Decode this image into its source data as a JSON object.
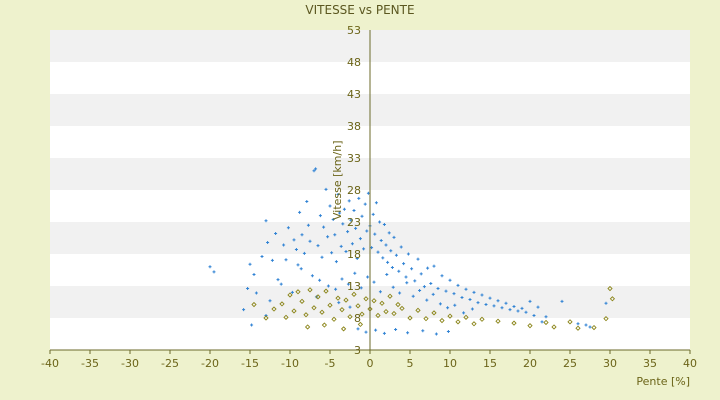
{
  "chart_data": {
    "type": "scatter",
    "title": "VITESSE vs PENTE",
    "xlabel": "Pente [%]",
    "ylabel": "Vitesse [km/h]",
    "xlim": [
      -40,
      40
    ],
    "ylim": [
      3,
      53
    ],
    "x_ticks": [
      "-40",
      "-35",
      "-30",
      "-25",
      "-20",
      "-15",
      "-10",
      "-5",
      "0",
      "5",
      "10",
      "15",
      "20",
      "25",
      "30",
      "35",
      "40"
    ],
    "y_ticks": [
      "3",
      "8",
      "13",
      "18",
      "23",
      "28",
      "33",
      "38",
      "43",
      "48",
      "53"
    ],
    "grid": "horizontal bands",
    "legend": "none",
    "colors": {
      "background": "#eef2cd",
      "plot_band_light": "#ffffff",
      "plot_band_gray": "#f1f1f1",
      "series_blue": "#2f82d4",
      "series_olive": "#8a8418",
      "axis_line": "#6b6a2a",
      "text": "#6b6418"
    },
    "series": [
      {
        "color": "#2f82d4",
        "marker": "cross",
        "points": [
          [
            -20,
            16.0
          ],
          [
            -19.5,
            15.2
          ],
          [
            -15,
            16.4
          ],
          [
            -14.5,
            14.8
          ],
          [
            -13.5,
            17.6
          ],
          [
            -13,
            23.2
          ],
          [
            -12.8,
            19.8
          ],
          [
            -12.2,
            17.0
          ],
          [
            -11.8,
            21.2
          ],
          [
            -11.5,
            14.0
          ],
          [
            -10.8,
            19.4
          ],
          [
            -10.5,
            17.1
          ],
          [
            -10.2,
            22.1
          ],
          [
            -9.5,
            20.2
          ],
          [
            -9.2,
            18.7
          ],
          [
            -9.0,
            16.3
          ],
          [
            -8.8,
            24.5
          ],
          [
            -8.5,
            21.0
          ],
          [
            -8.2,
            18.1
          ],
          [
            -7.9,
            26.2
          ],
          [
            -7.7,
            22.5
          ],
          [
            -7.5,
            20.0
          ],
          [
            -7.0,
            31.0
          ],
          [
            -6.8,
            31.3
          ],
          [
            -6.5,
            19.3
          ],
          [
            -6.2,
            24.0
          ],
          [
            -6.0,
            17.5
          ],
          [
            -5.8,
            22.2
          ],
          [
            -5.5,
            28.1
          ],
          [
            -5.3,
            20.7
          ],
          [
            -5.0,
            25.5
          ],
          [
            -4.8,
            18.2
          ],
          [
            -4.6,
            23.4
          ],
          [
            -4.4,
            21.0
          ],
          [
            -4.2,
            16.8
          ],
          [
            -4.0,
            27.3
          ],
          [
            -3.8,
            24.4
          ],
          [
            -3.6,
            19.2
          ],
          [
            -3.4,
            22.7
          ],
          [
            -3.2,
            25.0
          ],
          [
            -3.0,
            18.4
          ],
          [
            -2.8,
            21.5
          ],
          [
            -2.6,
            26.3
          ],
          [
            -2.4,
            23.3
          ],
          [
            -2.2,
            19.6
          ],
          [
            -2.0,
            24.8
          ],
          [
            -1.8,
            22.0
          ],
          [
            -1.6,
            17.3
          ],
          [
            -1.4,
            26.7
          ],
          [
            -1.2,
            20.4
          ],
          [
            -1.0,
            23.9
          ],
          [
            -0.8,
            18.8
          ],
          [
            -0.6,
            25.8
          ],
          [
            -0.4,
            21.6
          ],
          [
            -0.2,
            27.5
          ],
          [
            0.0,
            22.4
          ],
          [
            0.2,
            19.0
          ],
          [
            0.4,
            24.2
          ],
          [
            0.6,
            21.1
          ],
          [
            0.8,
            26.0
          ],
          [
            1.0,
            18.3
          ],
          [
            1.2,
            23.0
          ],
          [
            1.4,
            20.1
          ],
          [
            1.6,
            17.4
          ],
          [
            1.8,
            22.6
          ],
          [
            2.0,
            19.4
          ],
          [
            2.2,
            16.7
          ],
          [
            2.4,
            21.3
          ],
          [
            2.6,
            18.5
          ],
          [
            2.8,
            15.9
          ],
          [
            3.0,
            20.6
          ],
          [
            3.3,
            17.8
          ],
          [
            3.6,
            15.3
          ],
          [
            3.9,
            19.1
          ],
          [
            4.2,
            16.5
          ],
          [
            4.5,
            14.4
          ],
          [
            4.8,
            18.0
          ],
          [
            5.2,
            15.7
          ],
          [
            5.6,
            13.8
          ],
          [
            6.0,
            17.2
          ],
          [
            6.4,
            14.9
          ],
          [
            6.8,
            12.9
          ],
          [
            7.2,
            15.8
          ],
          [
            7.6,
            13.4
          ],
          [
            8.0,
            16.1
          ],
          [
            8.5,
            12.6
          ],
          [
            9.0,
            14.6
          ],
          [
            9.5,
            12.2
          ],
          [
            10.0,
            13.9
          ],
          [
            10.5,
            11.8
          ],
          [
            11.0,
            13.1
          ],
          [
            11.5,
            11.2
          ],
          [
            12.0,
            12.5
          ],
          [
            12.5,
            10.9
          ],
          [
            13.0,
            12.0
          ],
          [
            13.5,
            10.4
          ],
          [
            14.0,
            11.6
          ],
          [
            14.5,
            10.1
          ],
          [
            15.0,
            11.1
          ],
          [
            15.5,
            9.9
          ],
          [
            16.0,
            10.7
          ],
          [
            16.5,
            9.6
          ],
          [
            17.0,
            10.3
          ],
          [
            17.5,
            9.3
          ],
          [
            18.0,
            9.8
          ],
          [
            18.5,
            9.1
          ],
          [
            19.0,
            9.5
          ],
          [
            19.5,
            8.9
          ],
          [
            20.0,
            10.6
          ],
          [
            20.5,
            8.4
          ],
          [
            21.0,
            9.7
          ],
          [
            21.5,
            7.4
          ],
          [
            22.0,
            8.2
          ],
          [
            24.0,
            10.6
          ],
          [
            26.0,
            7.1
          ],
          [
            27.0,
            6.9
          ],
          [
            27.5,
            6.6
          ],
          [
            29.5,
            10.3
          ],
          [
            -8.6,
            15.7
          ],
          [
            -7.2,
            14.6
          ],
          [
            -6.3,
            13.9
          ],
          [
            -5.2,
            13.0
          ],
          [
            -4.3,
            12.5
          ],
          [
            -3.5,
            14.1
          ],
          [
            -2.7,
            13.3
          ],
          [
            -1.9,
            15.0
          ],
          [
            -1.1,
            12.7
          ],
          [
            -0.3,
            14.4
          ],
          [
            0.5,
            13.6
          ],
          [
            1.3,
            12.1
          ],
          [
            2.1,
            14.8
          ],
          [
            2.9,
            12.8
          ],
          [
            3.7,
            11.9
          ],
          [
            4.6,
            13.5
          ],
          [
            5.4,
            11.4
          ],
          [
            6.2,
            12.3
          ],
          [
            7.1,
            10.8
          ],
          [
            7.9,
            11.7
          ],
          [
            8.8,
            10.2
          ],
          [
            9.7,
            9.6
          ],
          [
            10.6,
            10.0
          ],
          [
            11.7,
            8.8
          ],
          [
            12.8,
            9.4
          ],
          [
            -1.5,
            6.3
          ],
          [
            -0.5,
            5.8
          ],
          [
            0.7,
            6.1
          ],
          [
            1.8,
            5.6
          ],
          [
            3.2,
            6.2
          ],
          [
            4.7,
            5.7
          ],
          [
            6.6,
            6.0
          ],
          [
            8.3,
            5.5
          ],
          [
            9.8,
            5.9
          ],
          [
            -2.5,
            9.7
          ],
          [
            -3.9,
            10.4
          ],
          [
            -6.7,
            11.3
          ],
          [
            -9.7,
            12.0
          ],
          [
            -11.1,
            13.3
          ],
          [
            -12.5,
            10.7
          ],
          [
            -14.2,
            11.9
          ],
          [
            -15.3,
            12.6
          ],
          [
            -15.8,
            9.3
          ],
          [
            -14.8,
            6.9
          ],
          [
            -13.0,
            8.4
          ]
        ]
      },
      {
        "color": "#8a8418",
        "marker": "diamond",
        "points": [
          [
            -11,
            10.2
          ],
          [
            -10.5,
            8.1
          ],
          [
            -10,
            11.6
          ],
          [
            -9.5,
            9.1
          ],
          [
            -9,
            12.1
          ],
          [
            -8.5,
            10.6
          ],
          [
            -8,
            8.5
          ],
          [
            -7.5,
            12.4
          ],
          [
            -7,
            9.6
          ],
          [
            -6.5,
            11.3
          ],
          [
            -6,
            8.9
          ],
          [
            -5.5,
            12.2
          ],
          [
            -5,
            10.0
          ],
          [
            -4.5,
            7.8
          ],
          [
            -4,
            11.1
          ],
          [
            -3.5,
            9.3
          ],
          [
            -3,
            10.8
          ],
          [
            -2.5,
            8.2
          ],
          [
            -2,
            11.7
          ],
          [
            -1.5,
            9.9
          ],
          [
            -1,
            8.6
          ],
          [
            -0.5,
            11.0
          ],
          [
            0,
            9.4
          ],
          [
            0.5,
            10.7
          ],
          [
            1,
            8.4
          ],
          [
            1.5,
            10.3
          ],
          [
            2,
            9.0
          ],
          [
            2.5,
            11.4
          ],
          [
            3,
            8.7
          ],
          [
            3.5,
            10.1
          ],
          [
            4,
            9.5
          ],
          [
            5,
            8.0
          ],
          [
            6,
            9.2
          ],
          [
            7,
            7.9
          ],
          [
            8,
            8.8
          ],
          [
            9,
            7.6
          ],
          [
            10,
            8.3
          ],
          [
            11,
            7.4
          ],
          [
            12,
            8.1
          ],
          [
            13,
            7.1
          ],
          [
            14,
            7.8
          ],
          [
            16,
            7.5
          ],
          [
            18,
            7.2
          ],
          [
            20,
            6.8
          ],
          [
            22,
            7.3
          ],
          [
            23,
            6.6
          ],
          [
            25,
            7.4
          ],
          [
            26,
            6.4
          ],
          [
            28,
            6.5
          ],
          [
            29.5,
            7.9
          ],
          [
            30,
            12.6
          ],
          [
            30.3,
            11.0
          ],
          [
            -12,
            9.4
          ],
          [
            -13,
            8.0
          ],
          [
            -14.5,
            10.1
          ],
          [
            -7.8,
            6.6
          ],
          [
            -5.7,
            6.9
          ],
          [
            -3.3,
            6.3
          ],
          [
            -1.2,
            7.0
          ]
        ]
      }
    ]
  }
}
